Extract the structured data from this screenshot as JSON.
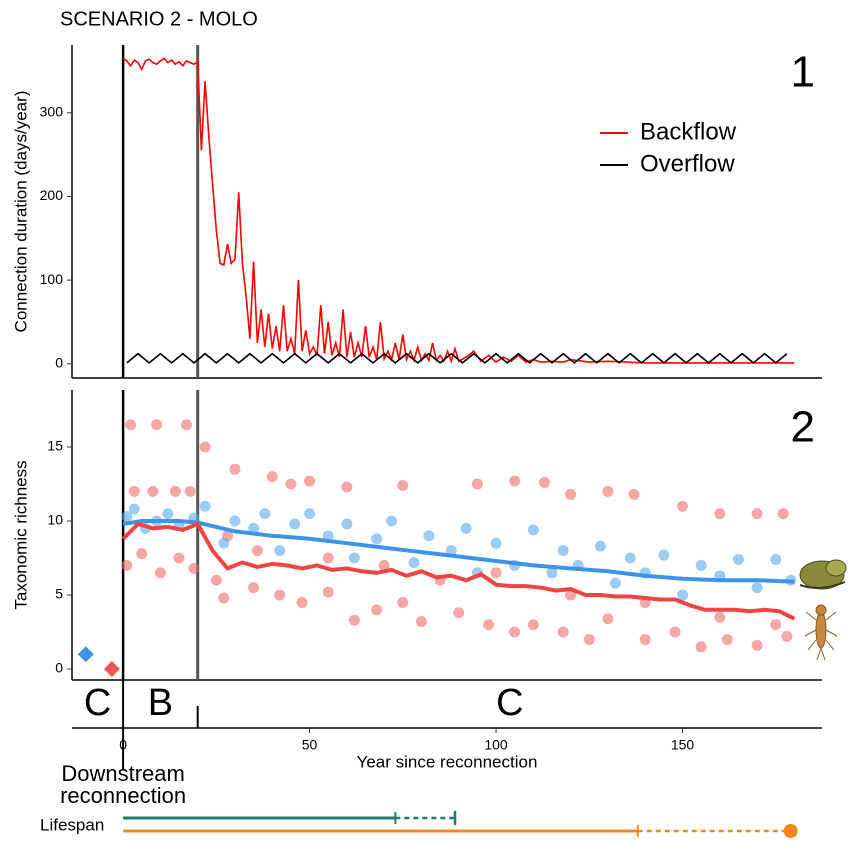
{
  "chart_data": [
    {
      "type": "line",
      "title": "SCENARIO 2 - MOLO",
      "panel_label": "1",
      "ylabel": "Connection duration (days/year)",
      "xlim": [
        -13.7,
        187.4
      ],
      "ylim": [
        -17,
        381
      ],
      "yticks": [
        0,
        100,
        200,
        300
      ],
      "legend": "upper right",
      "series": [
        {
          "name": "Backflow",
          "color": "#ff0000",
          "x": [
            0,
            1,
            2,
            3,
            4,
            5,
            6,
            7,
            8,
            9,
            10,
            11,
            12,
            13,
            14,
            15,
            16,
            17,
            18,
            19,
            20,
            21,
            22,
            23,
            24,
            25,
            26,
            27,
            28,
            29,
            30,
            31,
            32,
            33,
            34,
            35,
            36,
            37,
            38,
            39,
            40,
            41,
            42,
            43,
            44,
            45,
            46,
            47,
            48,
            49,
            50,
            51,
            52,
            53,
            54,
            55,
            56,
            57,
            58,
            59,
            60,
            61,
            62,
            63,
            64,
            65,
            66,
            67,
            68,
            69,
            70,
            71,
            72,
            73,
            74,
            75,
            76,
            77,
            78,
            79,
            80,
            81,
            82,
            83,
            84,
            85,
            86,
            87,
            88,
            89,
            90,
            92,
            94,
            96,
            98,
            100,
            102,
            104,
            106,
            108,
            110,
            112,
            115,
            118,
            120,
            125,
            130,
            140,
            150,
            160,
            170,
            180
          ],
          "values": [
            365,
            362,
            356,
            363,
            360,
            352,
            362,
            364,
            360,
            358,
            362,
            365,
            360,
            363,
            358,
            361,
            356,
            362,
            360,
            358,
            361,
            255,
            338,
            270,
            215,
            160,
            120,
            118,
            143,
            120,
            125,
            205,
            120,
            80,
            30,
            122,
            25,
            65,
            20,
            60,
            18,
            45,
            15,
            70,
            15,
            30,
            12,
            100,
            15,
            40,
            12,
            20,
            10,
            70,
            12,
            50,
            10,
            25,
            8,
            65,
            8,
            38,
            8,
            25,
            8,
            45,
            8,
            20,
            5,
            50,
            6,
            15,
            5,
            25,
            5,
            35,
            5,
            15,
            4,
            20,
            4,
            12,
            4,
            25,
            4,
            10,
            3,
            15,
            3,
            18,
            3,
            8,
            15,
            3,
            10,
            2,
            8,
            3,
            10,
            2,
            5,
            2,
            3,
            2,
            5,
            2,
            3,
            1,
            1,
            1,
            1,
            1
          ]
        },
        {
          "name": "Overflow",
          "color": "#000000",
          "x": [
            1,
            4,
            7,
            10,
            13,
            16,
            19,
            22,
            25,
            28,
            31,
            34,
            37,
            40,
            43,
            46,
            49,
            52,
            55,
            58,
            61,
            64,
            67,
            70,
            73,
            76,
            79,
            82,
            85,
            88,
            91,
            94,
            97,
            100,
            103,
            106,
            109,
            112,
            115,
            118,
            121,
            124,
            127,
            130,
            133,
            136,
            139,
            142,
            145,
            148,
            151,
            154,
            157,
            160,
            163,
            166,
            169,
            172,
            175,
            178
          ],
          "values": [
            1,
            12,
            1,
            12,
            1,
            12,
            1,
            12,
            1,
            12,
            1,
            12,
            1,
            12,
            1,
            12,
            1,
            12,
            1,
            12,
            1,
            12,
            1,
            12,
            1,
            12,
            1,
            12,
            1,
            12,
            1,
            12,
            1,
            12,
            1,
            12,
            1,
            12,
            1,
            12,
            1,
            12,
            1,
            12,
            1,
            12,
            1,
            12,
            1,
            12,
            1,
            12,
            1,
            12,
            1,
            12,
            1,
            12,
            1,
            12
          ]
        }
      ]
    },
    {
      "type": "scatter",
      "panel_label": "2",
      "ylabel": "Taxonomic richness",
      "xlim": [
        -13.7,
        187.4
      ],
      "ylim": [
        -0.74,
        18.85
      ],
      "yticks": [
        0,
        5,
        10,
        15
      ],
      "xticks": [
        0,
        50,
        100,
        150
      ],
      "xlabel": "Year since reconnection",
      "series": [
        {
          "color": "#f26b6b",
          "x": [
            2,
            9,
            17,
            22,
            30,
            40,
            45,
            50,
            60,
            75,
            95,
            105,
            113,
            120,
            130,
            137,
            150,
            160,
            170,
            177,
            3,
            8,
            14,
            18,
            1,
            5,
            10,
            15,
            19,
            25,
            27,
            35,
            42,
            48,
            55,
            62,
            68,
            75,
            80,
            90,
            98,
            105,
            110,
            118,
            125,
            130,
            140,
            148,
            155,
            162,
            170,
            178,
            28,
            36,
            55,
            70,
            85,
            100,
            120,
            140,
            160,
            175
          ],
          "values": [
            16.5,
            16.5,
            16.5,
            15,
            13.5,
            13,
            12.5,
            12.7,
            12.3,
            12.4,
            12.5,
            12.7,
            12.6,
            11.8,
            12,
            11.8,
            11,
            10.5,
            10.5,
            10.5,
            12,
            12,
            12,
            12,
            7,
            7.8,
            6.5,
            7.5,
            6.8,
            6,
            4.8,
            5.5,
            5,
            4.5,
            5.2,
            3.3,
            4,
            4.5,
            3.2,
            3.8,
            3,
            2.5,
            3,
            2.5,
            2,
            3.4,
            2,
            2.5,
            1.5,
            2,
            1.6,
            2.2,
            9,
            8,
            7.5,
            7,
            6,
            6.5,
            5,
            4.5,
            3.5,
            3
          ]
        },
        {
          "color": "#5aa8ec",
          "x": [
            1,
            3,
            6,
            9,
            12,
            15,
            19,
            22,
            27,
            30,
            35,
            38,
            42,
            46,
            50,
            55,
            60,
            62,
            68,
            72,
            78,
            82,
            88,
            92,
            95,
            100,
            105,
            110,
            115,
            118,
            122,
            128,
            132,
            136,
            140,
            145,
            150,
            155,
            160,
            165,
            170,
            175,
            179
          ],
          "values": [
            10.3,
            10.8,
            9.5,
            10,
            10.5,
            9.7,
            10.2,
            11,
            8.5,
            10,
            9.5,
            10.5,
            8,
            9.8,
            10.5,
            9,
            9.8,
            7.5,
            8.8,
            10,
            7.2,
            9,
            8,
            9.5,
            6.5,
            8.5,
            7,
            9.4,
            6.5,
            8,
            7,
            8.3,
            5.8,
            7.5,
            6.5,
            7.7,
            5,
            7,
            6.3,
            7.4,
            5.5,
            7.4,
            6
          ]
        }
      ],
      "lines": [
        {
          "color": "#3d94e6",
          "x": [
            0,
            5,
            10,
            15,
            20,
            30,
            40,
            50,
            60,
            70,
            80,
            90,
            100,
            110,
            120,
            130,
            140,
            150,
            160,
            170,
            180
          ],
          "values": [
            9.8,
            10,
            10,
            10,
            9.9,
            9.3,
            9,
            8.8,
            8.5,
            8.2,
            7.9,
            7.6,
            7.3,
            7,
            6.8,
            6.6,
            6.3,
            6.1,
            6,
            6,
            5.9
          ]
        },
        {
          "color": "#ee4444",
          "x": [
            0,
            4,
            8,
            12,
            16,
            20,
            24,
            28,
            32,
            36,
            40,
            44,
            48,
            52,
            56,
            60,
            64,
            68,
            72,
            76,
            80,
            84,
            88,
            92,
            96,
            100,
            104,
            108,
            112,
            116,
            120,
            124,
            128,
            132,
            136,
            140,
            144,
            148,
            152,
            156,
            160,
            164,
            168,
            172,
            176,
            180
          ],
          "values": [
            8.8,
            9.8,
            9.5,
            9.6,
            9.4,
            9.8,
            8,
            6.8,
            7.2,
            6.9,
            7.1,
            7,
            6.8,
            7,
            6.7,
            6.8,
            6.6,
            6.5,
            6.7,
            6.3,
            6.6,
            6.2,
            6.3,
            6,
            6.4,
            5.7,
            5.6,
            5.6,
            5.5,
            5.3,
            5.4,
            5,
            5,
            4.9,
            4.9,
            4.8,
            4.7,
            4.7,
            4.3,
            4,
            4,
            4,
            3.9,
            4,
            3.9,
            3.4
          ]
        }
      ],
      "markers": [
        {
          "x": -10,
          "y": 1,
          "color": "#3d94e6"
        },
        {
          "x": -3,
          "y": 0,
          "color": "#ee5555"
        }
      ]
    }
  ],
  "timeline": {
    "boundaries": [
      0,
      20
    ],
    "phases": [
      "C",
      "B",
      "C"
    ],
    "event_label": [
      "Downstream",
      "reconnection"
    ],
    "lifespan_label": "Lifespan",
    "lifespans": [
      {
        "color": "#1a7f6e",
        "solid_end": 73,
        "dashed_end": 89,
        "end_marker": "tick"
      },
      {
        "color": "#f5871f",
        "solid_end": 138,
        "dashed_end": 179,
        "end_marker": "dot"
      }
    ]
  }
}
